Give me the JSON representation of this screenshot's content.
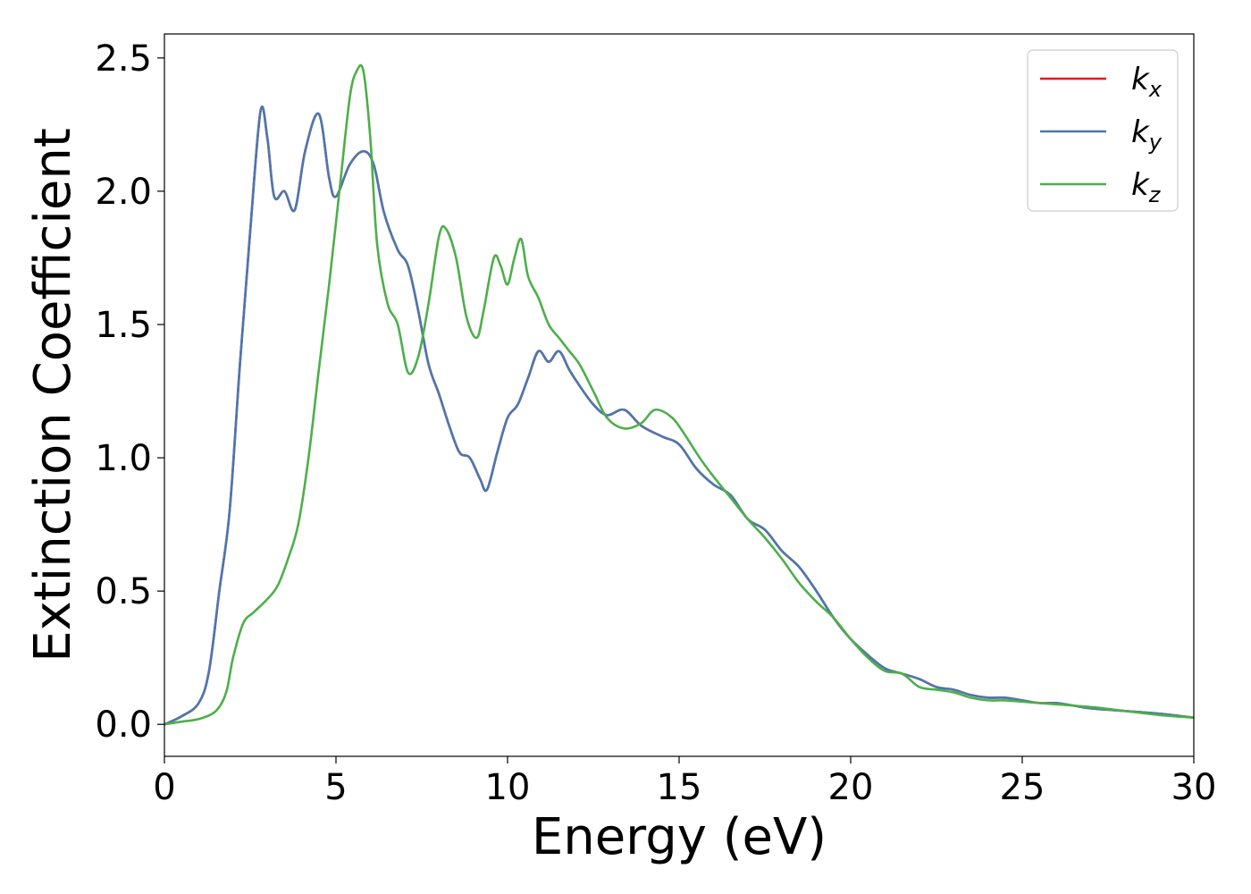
{
  "chart_data": {
    "type": "line",
    "title": "",
    "xlabel": "Energy (eV)",
    "ylabel": "Extinction Coefficient",
    "xlim": [
      0,
      30
    ],
    "ylim": [
      -0.12,
      2.59
    ],
    "xticks": [
      0,
      5,
      10,
      15,
      20,
      25,
      30
    ],
    "xtick_labels": [
      "0",
      "5",
      "10",
      "15",
      "20",
      "25",
      "30"
    ],
    "yticks": [
      0.0,
      0.5,
      1.0,
      1.5,
      2.0,
      2.5
    ],
    "ytick_labels": [
      "0.0",
      "0.5",
      "1.0",
      "1.5",
      "2.0",
      "2.5"
    ],
    "grid": false,
    "legend_position": "top-right",
    "series": [
      {
        "name": "k",
        "sub": "x",
        "color": "#e41a1c",
        "x": [
          0,
          0.5,
          1,
          1.3,
          1.6,
          1.9,
          2.2,
          2.5,
          2.8,
          3.0,
          3.2,
          3.5,
          3.8,
          4.1,
          4.5,
          4.8,
          5.0,
          5.4,
          5.8,
          6.1,
          6.4,
          6.8,
          7.1,
          7.4,
          7.7,
          8.0,
          8.3,
          8.6,
          8.9,
          9.2,
          9.4,
          9.7,
          10.0,
          10.3,
          10.6,
          10.9,
          11.2,
          11.5,
          11.8,
          12.1,
          12.5,
          12.9,
          13.4,
          13.9,
          14.5,
          15.0,
          15.5,
          16.0,
          16.5,
          17.0,
          17.5,
          18.0,
          18.5,
          19.0,
          19.5,
          20.0,
          20.5,
          21.0,
          21.5,
          22.0,
          22.5,
          23.0,
          23.5,
          24.0,
          24.5,
          25.0,
          25.5,
          26.0,
          26.5,
          27.0,
          28.0,
          29.0,
          30.0
        ],
        "y": [
          0.0,
          0.03,
          0.08,
          0.2,
          0.5,
          0.8,
          1.35,
          1.85,
          2.3,
          2.2,
          1.98,
          2.0,
          1.93,
          2.15,
          2.29,
          2.05,
          1.98,
          2.1,
          2.15,
          2.1,
          1.92,
          1.78,
          1.72,
          1.55,
          1.35,
          1.24,
          1.12,
          1.02,
          1.0,
          0.92,
          0.88,
          1.02,
          1.15,
          1.2,
          1.3,
          1.4,
          1.36,
          1.4,
          1.33,
          1.27,
          1.2,
          1.16,
          1.18,
          1.12,
          1.08,
          1.05,
          0.96,
          0.9,
          0.86,
          0.77,
          0.73,
          0.65,
          0.59,
          0.5,
          0.4,
          0.32,
          0.26,
          0.21,
          0.19,
          0.17,
          0.14,
          0.13,
          0.11,
          0.1,
          0.1,
          0.09,
          0.08,
          0.08,
          0.07,
          0.06,
          0.05,
          0.04,
          0.025
        ]
      },
      {
        "name": "k",
        "sub": "y",
        "color": "#4a78b0",
        "x": [
          0,
          0.5,
          1,
          1.3,
          1.6,
          1.9,
          2.2,
          2.5,
          2.8,
          3.0,
          3.2,
          3.5,
          3.8,
          4.1,
          4.5,
          4.8,
          5.0,
          5.4,
          5.8,
          6.1,
          6.4,
          6.8,
          7.1,
          7.4,
          7.7,
          8.0,
          8.3,
          8.6,
          8.9,
          9.2,
          9.4,
          9.7,
          10.0,
          10.3,
          10.6,
          10.9,
          11.2,
          11.5,
          11.8,
          12.1,
          12.5,
          12.9,
          13.4,
          13.9,
          14.5,
          15.0,
          15.5,
          16.0,
          16.5,
          17.0,
          17.5,
          18.0,
          18.5,
          19.0,
          19.5,
          20.0,
          20.5,
          21.0,
          21.5,
          22.0,
          22.5,
          23.0,
          23.5,
          24.0,
          24.5,
          25.0,
          25.5,
          26.0,
          26.5,
          27.0,
          28.0,
          29.0,
          30.0
        ],
        "y": [
          0.0,
          0.03,
          0.08,
          0.2,
          0.5,
          0.8,
          1.35,
          1.85,
          2.3,
          2.2,
          1.98,
          2.0,
          1.93,
          2.15,
          2.29,
          2.05,
          1.98,
          2.1,
          2.15,
          2.1,
          1.92,
          1.78,
          1.72,
          1.55,
          1.35,
          1.24,
          1.12,
          1.02,
          1.0,
          0.92,
          0.88,
          1.02,
          1.15,
          1.2,
          1.3,
          1.4,
          1.36,
          1.4,
          1.33,
          1.27,
          1.2,
          1.16,
          1.18,
          1.12,
          1.08,
          1.05,
          0.96,
          0.9,
          0.86,
          0.77,
          0.73,
          0.65,
          0.59,
          0.5,
          0.4,
          0.32,
          0.26,
          0.21,
          0.19,
          0.17,
          0.14,
          0.13,
          0.11,
          0.1,
          0.1,
          0.09,
          0.08,
          0.08,
          0.07,
          0.06,
          0.05,
          0.04,
          0.025
        ]
      },
      {
        "name": "k",
        "sub": "z",
        "color": "#4daf4a",
        "x": [
          0,
          0.5,
          1,
          1.5,
          1.8,
          2.0,
          2.3,
          2.6,
          3.0,
          3.3,
          3.6,
          3.9,
          4.2,
          4.5,
          4.8,
          5.1,
          5.4,
          5.6,
          5.8,
          6.0,
          6.2,
          6.5,
          6.8,
          7.1,
          7.4,
          7.7,
          8.0,
          8.2,
          8.5,
          8.8,
          9.1,
          9.3,
          9.6,
          9.8,
          10.0,
          10.2,
          10.4,
          10.6,
          10.9,
          11.2,
          11.5,
          11.8,
          12.1,
          12.5,
          12.9,
          13.4,
          13.9,
          14.3,
          14.8,
          15.2,
          15.6,
          16.0,
          16.5,
          17.0,
          17.5,
          18.0,
          18.5,
          19.0,
          19.5,
          20.0,
          20.5,
          21.0,
          21.5,
          22.0,
          22.5,
          23.0,
          23.5,
          24.0,
          24.5,
          25.0,
          25.5,
          26.0,
          27.0,
          28.0,
          29.0,
          30.0
        ],
        "y": [
          0.0,
          0.01,
          0.02,
          0.05,
          0.12,
          0.25,
          0.38,
          0.42,
          0.47,
          0.52,
          0.62,
          0.75,
          1.0,
          1.33,
          1.65,
          2.0,
          2.35,
          2.45,
          2.45,
          2.2,
          1.8,
          1.58,
          1.5,
          1.32,
          1.38,
          1.58,
          1.83,
          1.86,
          1.75,
          1.53,
          1.45,
          1.55,
          1.75,
          1.72,
          1.65,
          1.75,
          1.82,
          1.68,
          1.6,
          1.5,
          1.45,
          1.4,
          1.35,
          1.25,
          1.15,
          1.11,
          1.13,
          1.18,
          1.15,
          1.08,
          1.0,
          0.93,
          0.85,
          0.77,
          0.7,
          0.62,
          0.53,
          0.46,
          0.4,
          0.32,
          0.25,
          0.2,
          0.19,
          0.14,
          0.13,
          0.12,
          0.1,
          0.09,
          0.09,
          0.085,
          0.08,
          0.075,
          0.065,
          0.05,
          0.035,
          0.025
        ]
      }
    ]
  }
}
